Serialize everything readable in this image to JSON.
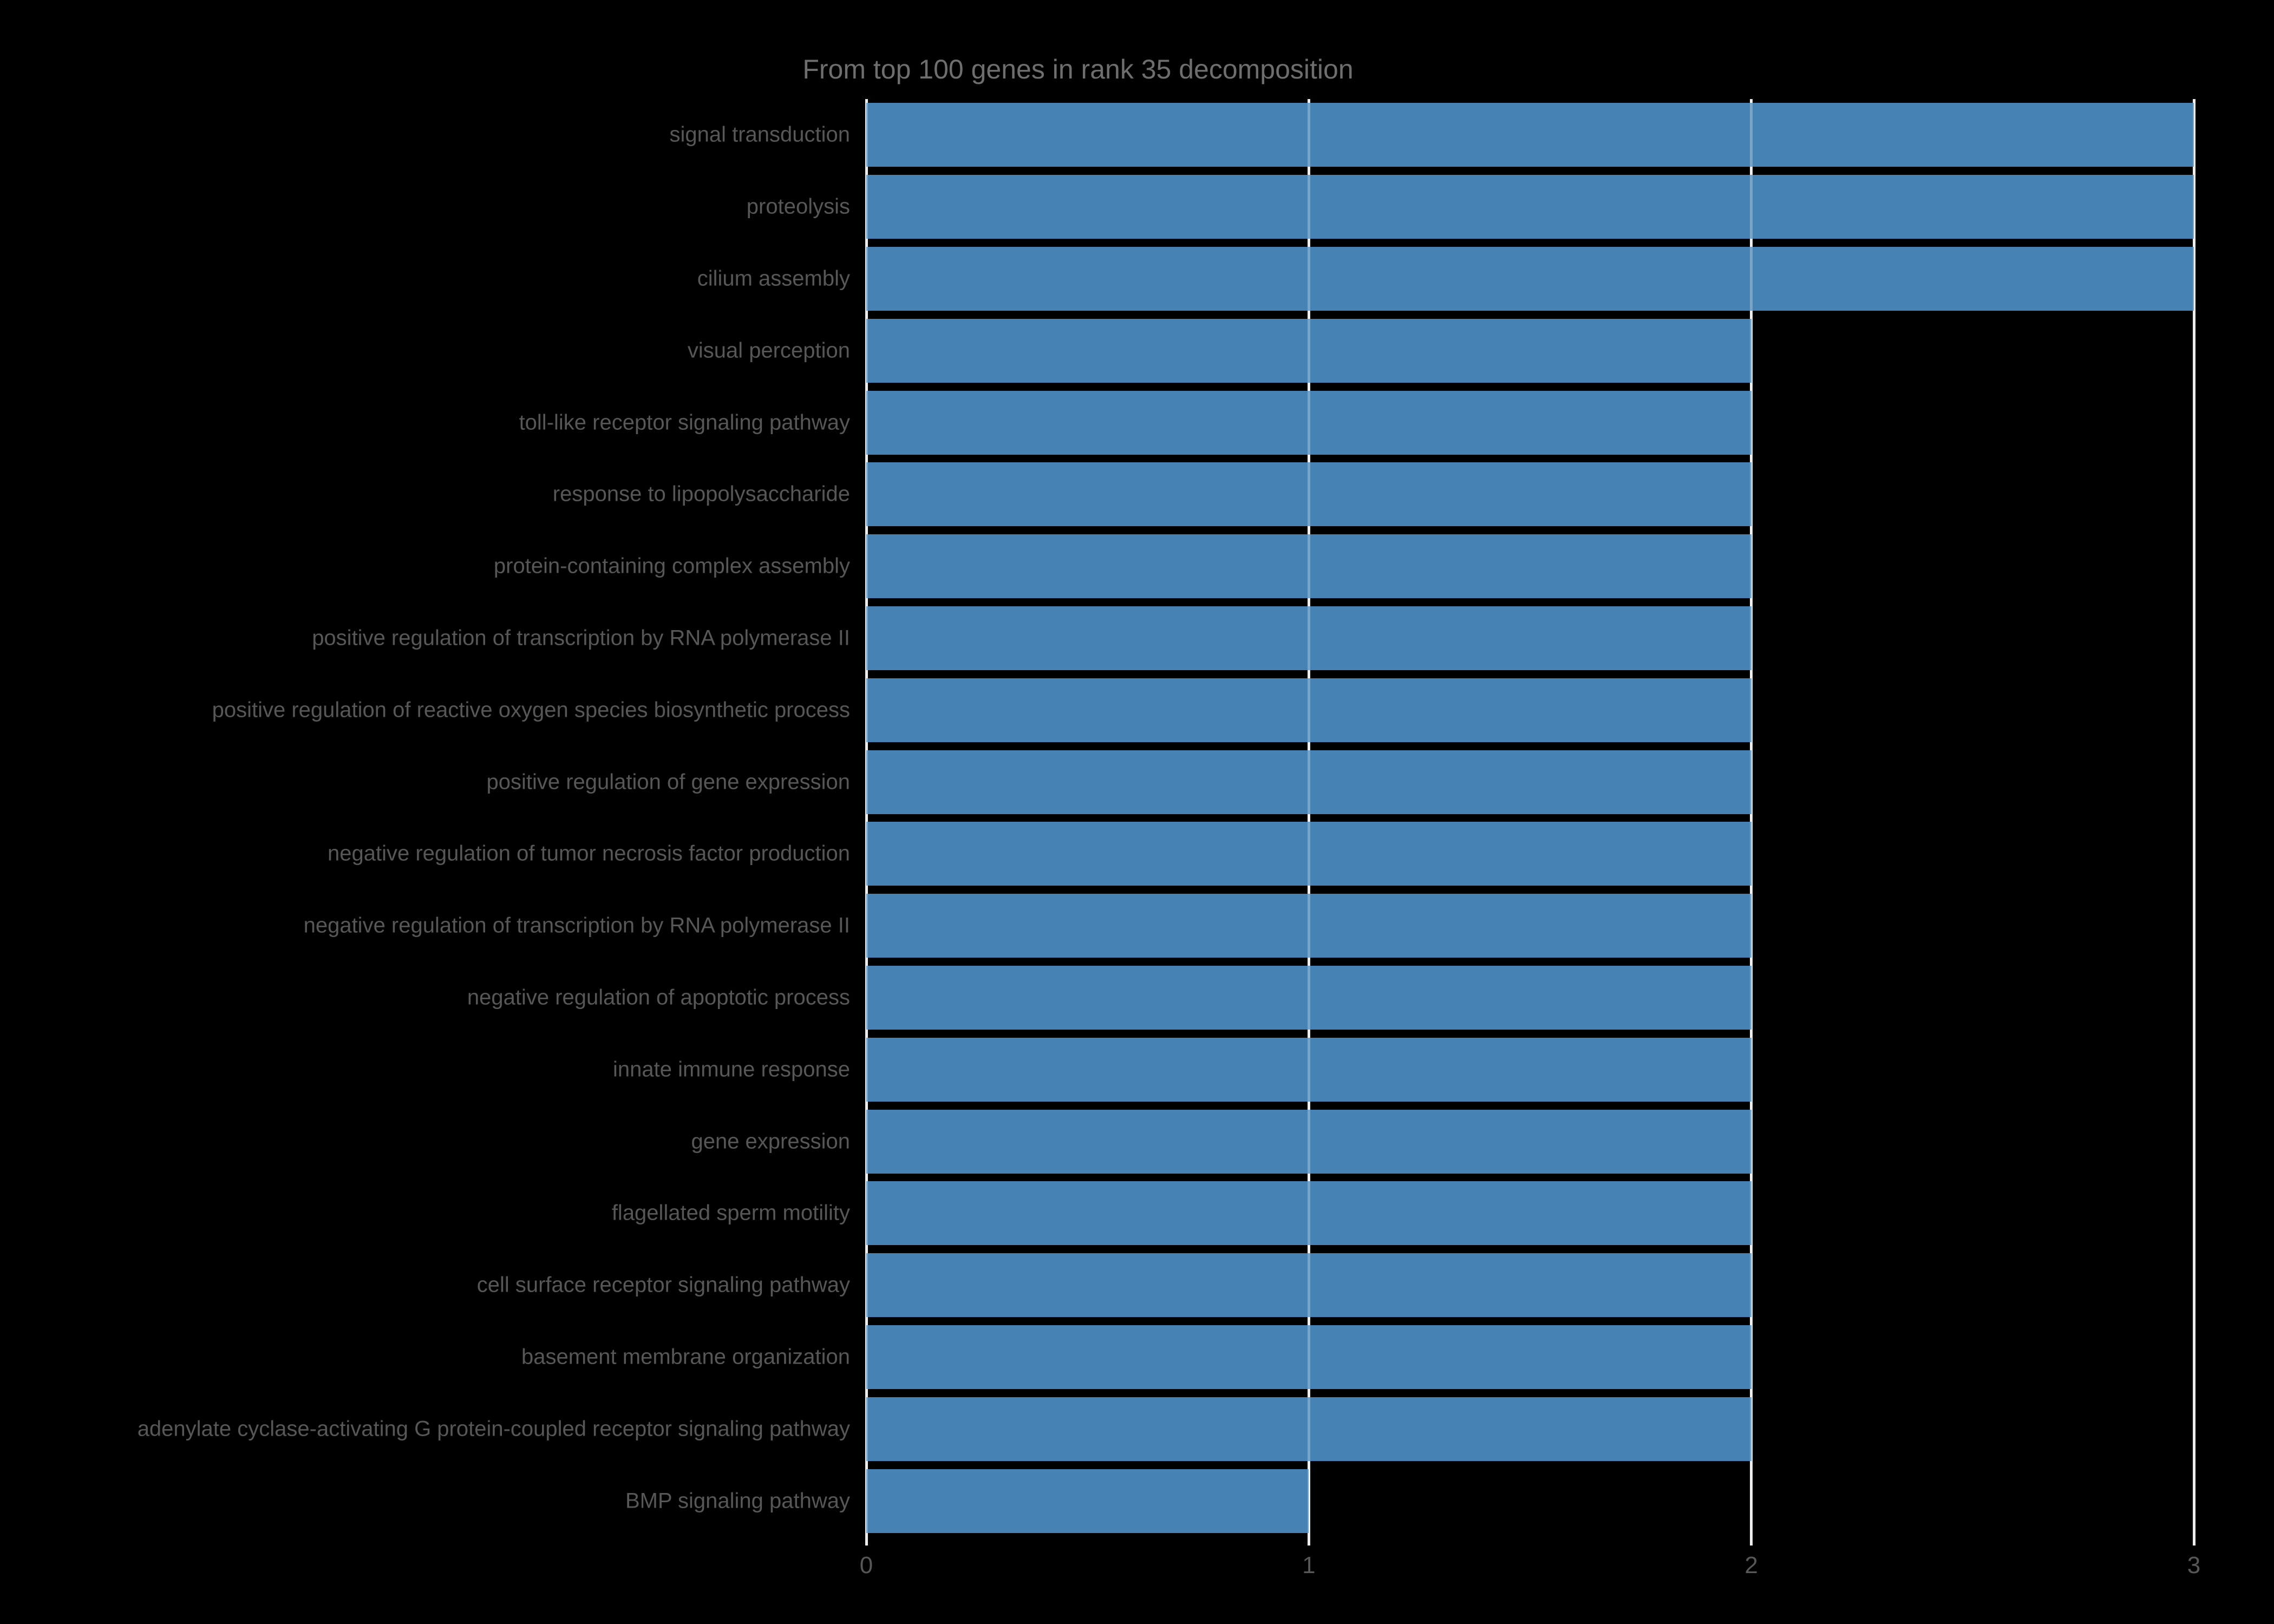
{
  "title": "From top 100 genes in rank 35 decomposition",
  "colors": {
    "background": "#000000",
    "bar": "#4682b4",
    "gridline": "#ececec",
    "title_text": "#6e6e6e",
    "label_text": "#575757"
  },
  "chart_data": {
    "type": "bar",
    "orientation": "horizontal",
    "title": "From top 100 genes in rank 35 decomposition",
    "xlabel": "",
    "ylabel": "",
    "xlim": [
      0,
      3
    ],
    "xticks": [
      0,
      1,
      2,
      3
    ],
    "grid": true,
    "legend": false,
    "categories": [
      "signal transduction",
      "proteolysis",
      "cilium assembly",
      "visual perception",
      "toll-like receptor signaling pathway",
      "response to lipopolysaccharide",
      "protein-containing complex assembly",
      "positive regulation of transcription by RNA polymerase II",
      "positive regulation of reactive oxygen species biosynthetic process",
      "positive regulation of gene expression",
      "negative regulation of tumor necrosis factor production",
      "negative regulation of transcription by RNA polymerase II",
      "negative regulation of apoptotic process",
      "innate immune response",
      "gene expression",
      "flagellated sperm motility",
      "cell surface receptor signaling pathway",
      "basement membrane organization",
      "adenylate cyclase-activating G protein-coupled receptor signaling pathway",
      "BMP signaling pathway"
    ],
    "values": [
      3,
      3,
      3,
      2,
      2,
      2,
      2,
      2,
      2,
      2,
      2,
      2,
      2,
      2,
      2,
      2,
      2,
      2,
      2,
      1
    ]
  }
}
